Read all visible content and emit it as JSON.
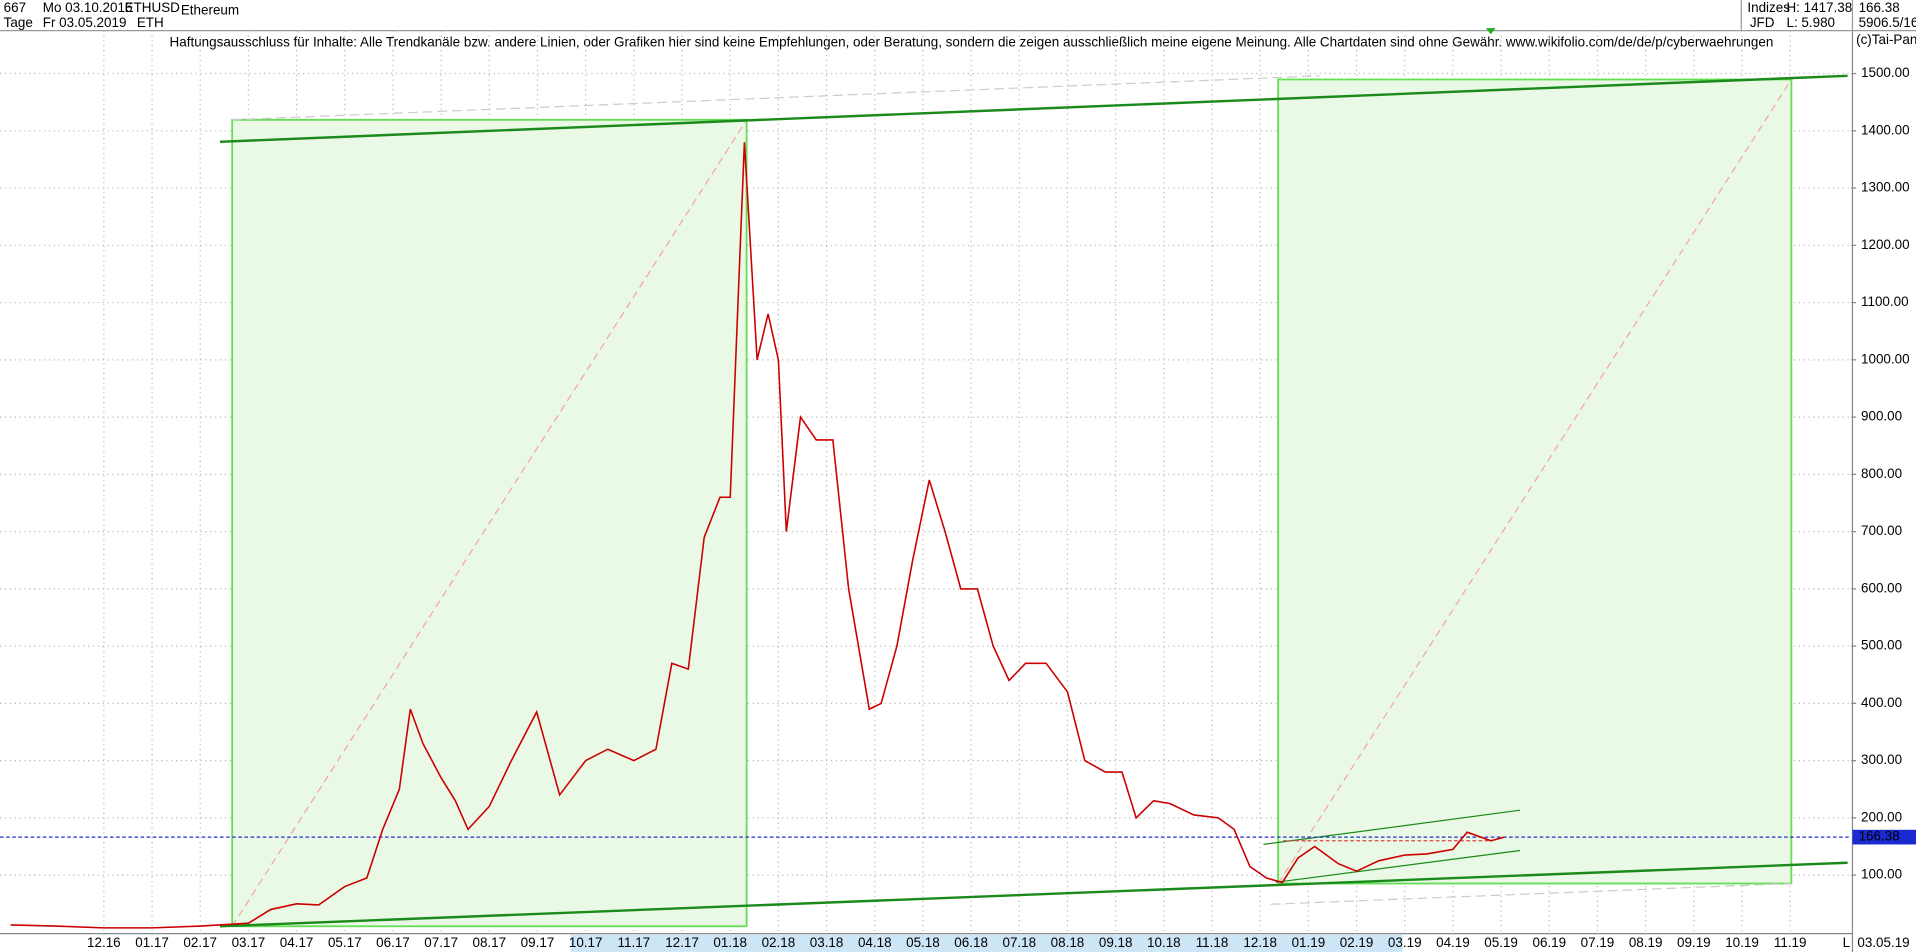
{
  "header": {
    "count": "667",
    "date_from": "Mo 03.10.2016",
    "symbol": "ETHUSD",
    "name": "Ethereum",
    "period": "Tage",
    "date_to": "Fr 03.05.2019",
    "short": "ETH",
    "group": "Indizes",
    "broker": "JFD",
    "high": "H: 1417.38",
    "low": "L: 5.980",
    "ratio": "5906.5/16",
    "disclaimer": "Haftungsausschluss für Inhalte: Alle Trendkanäle bzw. andere Linien, oder Grafiken hier sind keine Empfehlungen, oder Beratung, sondern die zeigen ausschließlich meine eigene Meinung. Alle Chartdaten sind ohne Gewähr.  www.wikifolio.com/de/de/p/cyberwaehrungen",
    "copyright": "(c)Tai-Pan",
    "scale_mode": "L",
    "end_date": "03.05.19"
  },
  "chart_data": {
    "type": "line",
    "last_price": 166.38,
    "ylim": [
      0,
      1575
    ],
    "yticks": [
      {
        "value": 100,
        "label": "100.00"
      },
      {
        "value": 200,
        "label": "200.00"
      },
      {
        "value": 300,
        "label": "300.00"
      },
      {
        "value": 400,
        "label": "400.00"
      },
      {
        "value": 500,
        "label": "500.00"
      },
      {
        "value": 600,
        "label": "600.00"
      },
      {
        "value": 700,
        "label": "700.00"
      },
      {
        "value": 800,
        "label": "800.00"
      },
      {
        "value": 900,
        "label": "900.00"
      },
      {
        "value": 1000,
        "label": "1000.00"
      },
      {
        "value": 1100,
        "label": "1100.00"
      },
      {
        "value": 1200,
        "label": "1200.00"
      },
      {
        "value": 1300,
        "label": "1300.00"
      },
      {
        "value": 1400,
        "label": "1400.00"
      },
      {
        "value": 1500,
        "label": "1500.00"
      }
    ],
    "xticks": [
      "12.16",
      "01.17",
      "02.17",
      "03.17",
      "04.17",
      "05.17",
      "06.17",
      "07.17",
      "08.17",
      "09.17",
      "10.17",
      "11.17",
      "12.17",
      "01.18",
      "02.18",
      "03.18",
      "04.18",
      "05.18",
      "06.18",
      "07.18",
      "08.18",
      "09.18",
      "10.18",
      "11.18",
      "12.18",
      "01.19",
      "02.19",
      "03.19",
      "04.19",
      "05.19",
      "06.19",
      "07.19",
      "08.19",
      "09.19",
      "10.19",
      "11.19"
    ],
    "grid": true,
    "series": [
      {
        "name": "ETHUSD",
        "color": "#cc0000",
        "x": [
          "03.10.16",
          "01.11.16",
          "01.12.16",
          "01.01.17",
          "01.02.17",
          "01.03.17",
          "15.03.17",
          "01.04.17",
          "15.04.17",
          "01.05.17",
          "15.05.17",
          "25.05.17",
          "05.06.17",
          "12.06.17",
          "20.06.17",
          "01.07.17",
          "10.07.17",
          "18.07.17",
          "01.08.17",
          "15.08.17",
          "31.08.17",
          "15.09.17",
          "01.10.17",
          "15.10.17",
          "01.11.17",
          "15.11.17",
          "25.11.17",
          "05.12.17",
          "15.12.17",
          "25.12.17",
          "01.01.18",
          "10.01.18",
          "18.01.18",
          "25.01.18",
          "01.02.18",
          "06.02.18",
          "15.02.18",
          "25.02.18",
          "05.03.18",
          "15.03.18",
          "28.03.18",
          "05.04.18",
          "15.04.18",
          "25.04.18",
          "05.05.18",
          "15.05.18",
          "25.05.18",
          "05.06.18",
          "15.06.18",
          "25.06.18",
          "05.07.18",
          "18.07.18",
          "01.08.18",
          "12.08.18",
          "25.08.18",
          "05.09.18",
          "14.09.18",
          "25.09.18",
          "05.10.18",
          "20.10.18",
          "05.11.18",
          "15.11.18",
          "25.11.18",
          "05.12.18",
          "15.12.18",
          "25.12.18",
          "05.01.19",
          "20.01.19",
          "01.02.19",
          "15.02.19",
          "01.03.19",
          "15.03.19",
          "01.04.19",
          "10.04.19",
          "25.04.19",
          "03.05.19"
        ],
        "values": [
          13,
          11,
          8,
          8,
          11,
          16,
          40,
          50,
          48,
          80,
          95,
          180,
          250,
          390,
          330,
          270,
          230,
          180,
          220,
          300,
          385,
          240,
          300,
          320,
          300,
          320,
          470,
          460,
          690,
          760,
          760,
          1380,
          1000,
          1080,
          1000,
          700,
          900,
          860,
          860,
          600,
          390,
          400,
          500,
          650,
          790,
          700,
          600,
          600,
          500,
          440,
          470,
          470,
          420,
          300,
          280,
          280,
          200,
          230,
          225,
          205,
          200,
          180,
          115,
          95,
          87,
          130,
          150,
          120,
          107,
          125,
          135,
          137,
          145,
          175,
          160,
          166.38
        ]
      }
    ]
  }
}
